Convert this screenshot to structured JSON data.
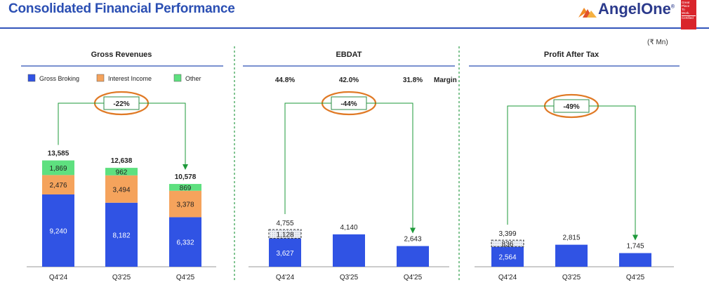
{
  "header": {
    "title": "Consolidated Financial Performance",
    "logo_text_angel": "Angel",
    "logo_text_one": "One",
    "logo_registered": "®",
    "badge_lines": [
      "Great",
      "Place",
      "To",
      "Work.",
      "Certified"
    ]
  },
  "unit": "(₹ Mn)",
  "colors": {
    "gross_broking": "#3053e4",
    "interest_income": "#f5a35c",
    "other": "#5ee07f",
    "arrow": "#1e9a3a",
    "ellipse": "#e07a26",
    "divider": "#2e9e4a"
  },
  "chart_data": [
    {
      "type": "bar",
      "stacked": true,
      "title": "Gross Revenues",
      "categories": [
        "Q4'24",
        "Q3'25",
        "Q4'25"
      ],
      "series": [
        {
          "name": "Gross Broking",
          "values": [
            9240,
            8182,
            6332
          ],
          "labels": [
            "9,240",
            "8,182",
            "6,332"
          ]
        },
        {
          "name": "Interest Income",
          "values": [
            2476,
            3494,
            3378
          ],
          "labels": [
            "2,476",
            "3,494",
            "3,378"
          ]
        },
        {
          "name": "Other",
          "values": [
            1869,
            962,
            869
          ],
          "labels": [
            "1,869",
            "962",
            "869"
          ]
        }
      ],
      "totals": [
        "13,585",
        "12,638",
        "10,578"
      ],
      "change": "-22%",
      "legend": "top"
    },
    {
      "type": "bar",
      "title": "EBDAT",
      "categories": [
        "Q4'24",
        "Q3'25",
        "Q4'25"
      ],
      "values": [
        3627,
        4140,
        2643
      ],
      "value_labels": [
        "3,627",
        "4,140",
        "2,643"
      ],
      "excluded": {
        "category": "Q4'24",
        "value": 1128,
        "label": "1,128"
      },
      "total_label": "4,755",
      "margins": [
        "44.8%",
        "42.0%",
        "31.8%"
      ],
      "margin_label": "Margin",
      "change": "-44%"
    },
    {
      "type": "bar",
      "title": "Profit After Tax",
      "categories": [
        "Q4'24",
        "Q3'25",
        "Q4'25"
      ],
      "values": [
        2564,
        2815,
        1745
      ],
      "value_labels": [
        "2,564",
        "2,815",
        "1,745"
      ],
      "excluded": {
        "category": "Q4'24",
        "value": 836,
        "label": "836"
      },
      "total_label": "3,399",
      "change": "-49%"
    }
  ]
}
